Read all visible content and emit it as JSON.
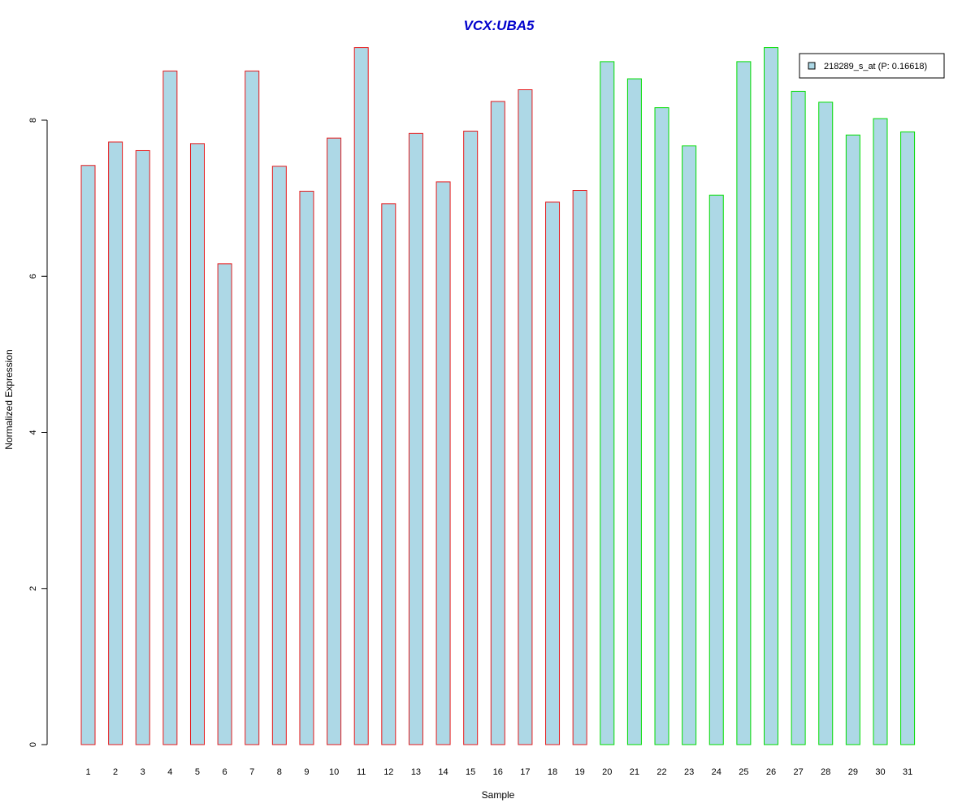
{
  "chart_data": {
    "type": "bar",
    "title": "VCX:UBA5",
    "xlabel": "Sample",
    "ylabel": "Normalized Expression",
    "ylim": [
      0,
      8.9
    ],
    "yticks": [
      0,
      2,
      4,
      6,
      8
    ],
    "grid": false,
    "legend_position": "top-right",
    "categories": [
      "1",
      "2",
      "3",
      "4",
      "5",
      "6",
      "7",
      "8",
      "9",
      "10",
      "11",
      "12",
      "13",
      "14",
      "15",
      "16",
      "17",
      "18",
      "19",
      "20",
      "21",
      "22",
      "23",
      "24",
      "25",
      "26",
      "27",
      "28",
      "29",
      "30",
      "31"
    ],
    "series": [
      {
        "name": "218289_s_at (P: 0.16618)",
        "values": [
          7.42,
          7.72,
          7.61,
          8.63,
          7.7,
          6.16,
          8.63,
          7.41,
          7.09,
          7.77,
          8.93,
          6.93,
          7.83,
          7.21,
          7.86,
          8.24,
          8.39,
          6.95,
          7.1,
          8.75,
          8.53,
          8.16,
          7.67,
          7.04,
          8.75,
          8.93,
          8.37,
          8.23,
          7.81,
          8.02,
          7.85
        ]
      }
    ],
    "group_border_colors": [
      "#e41a1c",
      "#e41a1c",
      "#e41a1c",
      "#e41a1c",
      "#e41a1c",
      "#e41a1c",
      "#e41a1c",
      "#e41a1c",
      "#e41a1c",
      "#e41a1c",
      "#e41a1c",
      "#e41a1c",
      "#e41a1c",
      "#e41a1c",
      "#e41a1c",
      "#e41a1c",
      "#e41a1c",
      "#e41a1c",
      "#e41a1c",
      "#00dd00",
      "#00dd00",
      "#00dd00",
      "#00dd00",
      "#00dd00",
      "#00dd00",
      "#00dd00",
      "#00dd00",
      "#00dd00",
      "#00dd00",
      "#00dd00",
      "#00dd00"
    ],
    "colors": {
      "bar_fill": "#add8e6",
      "title": "#0000cc",
      "axis": "#000000"
    }
  }
}
